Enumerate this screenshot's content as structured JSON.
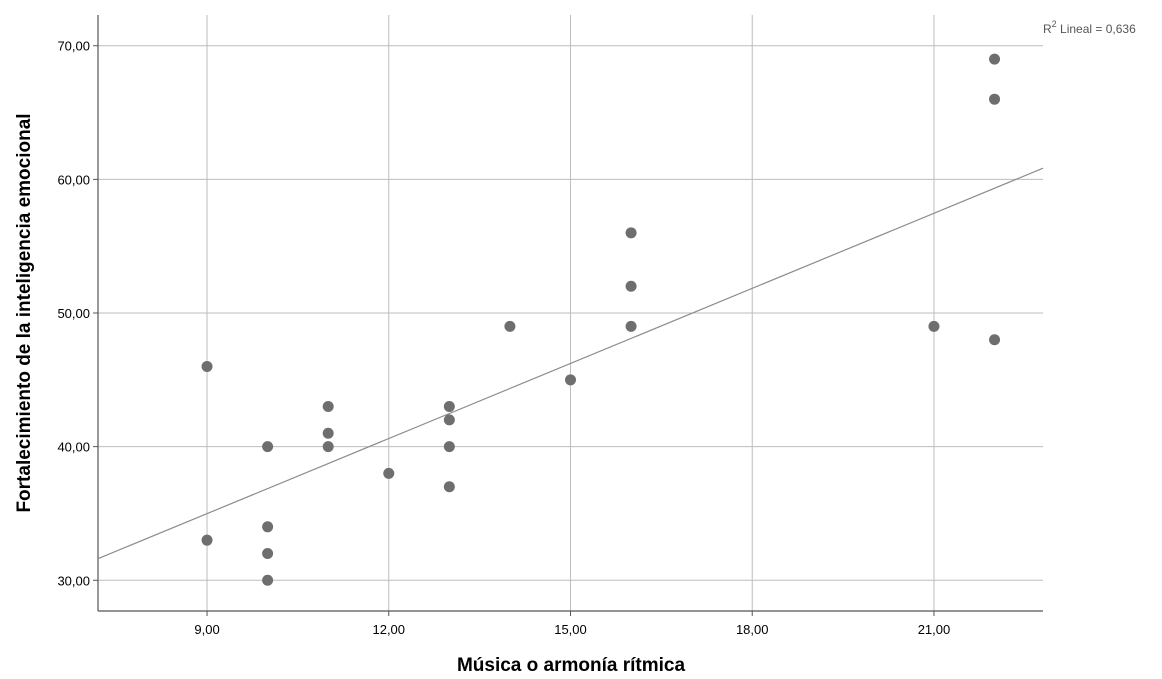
{
  "chart_data": {
    "type": "scatter",
    "xlabel": "Música o armonía rítmica",
    "ylabel": "Fortalecimiento de la inteligencia emocional",
    "xlim": [
      7.2,
      22.8
    ],
    "ylim": [
      27.7,
      72.3
    ],
    "x_ticks": [
      9,
      12,
      15,
      18,
      21
    ],
    "x_tick_labels": [
      "9,00",
      "12,00",
      "15,00",
      "18,00",
      "21,00"
    ],
    "y_ticks": [
      30,
      40,
      50,
      60,
      70
    ],
    "y_tick_labels": [
      "30,00",
      "40,00",
      "50,00",
      "60,00",
      "70,00"
    ],
    "grid": true,
    "points": [
      {
        "x": 9,
        "y": 46
      },
      {
        "x": 9,
        "y": 33
      },
      {
        "x": 10,
        "y": 40
      },
      {
        "x": 10,
        "y": 34
      },
      {
        "x": 10,
        "y": 32
      },
      {
        "x": 10,
        "y": 30
      },
      {
        "x": 11,
        "y": 43
      },
      {
        "x": 11,
        "y": 41
      },
      {
        "x": 11,
        "y": 40
      },
      {
        "x": 12,
        "y": 38
      },
      {
        "x": 13,
        "y": 43
      },
      {
        "x": 13,
        "y": 42
      },
      {
        "x": 13,
        "y": 40
      },
      {
        "x": 13,
        "y": 37
      },
      {
        "x": 14,
        "y": 49
      },
      {
        "x": 15,
        "y": 45
      },
      {
        "x": 16,
        "y": 56
      },
      {
        "x": 16,
        "y": 52
      },
      {
        "x": 16,
        "y": 49
      },
      {
        "x": 21,
        "y": 49
      },
      {
        "x": 22,
        "y": 69
      },
      {
        "x": 22,
        "y": 66
      },
      {
        "x": 22,
        "y": 48
      }
    ],
    "fit_line": {
      "type": "linear",
      "intercept": 18.13,
      "slope": 1.873
    },
    "r2_label": {
      "prefix": "R",
      "sup": "2",
      "text": " Lineal = 0,636"
    },
    "colors": {
      "points": "#6e6e6e",
      "fit_line": "#8c8c8c",
      "grid": "#bdbdbd",
      "axis": "#555555"
    }
  }
}
